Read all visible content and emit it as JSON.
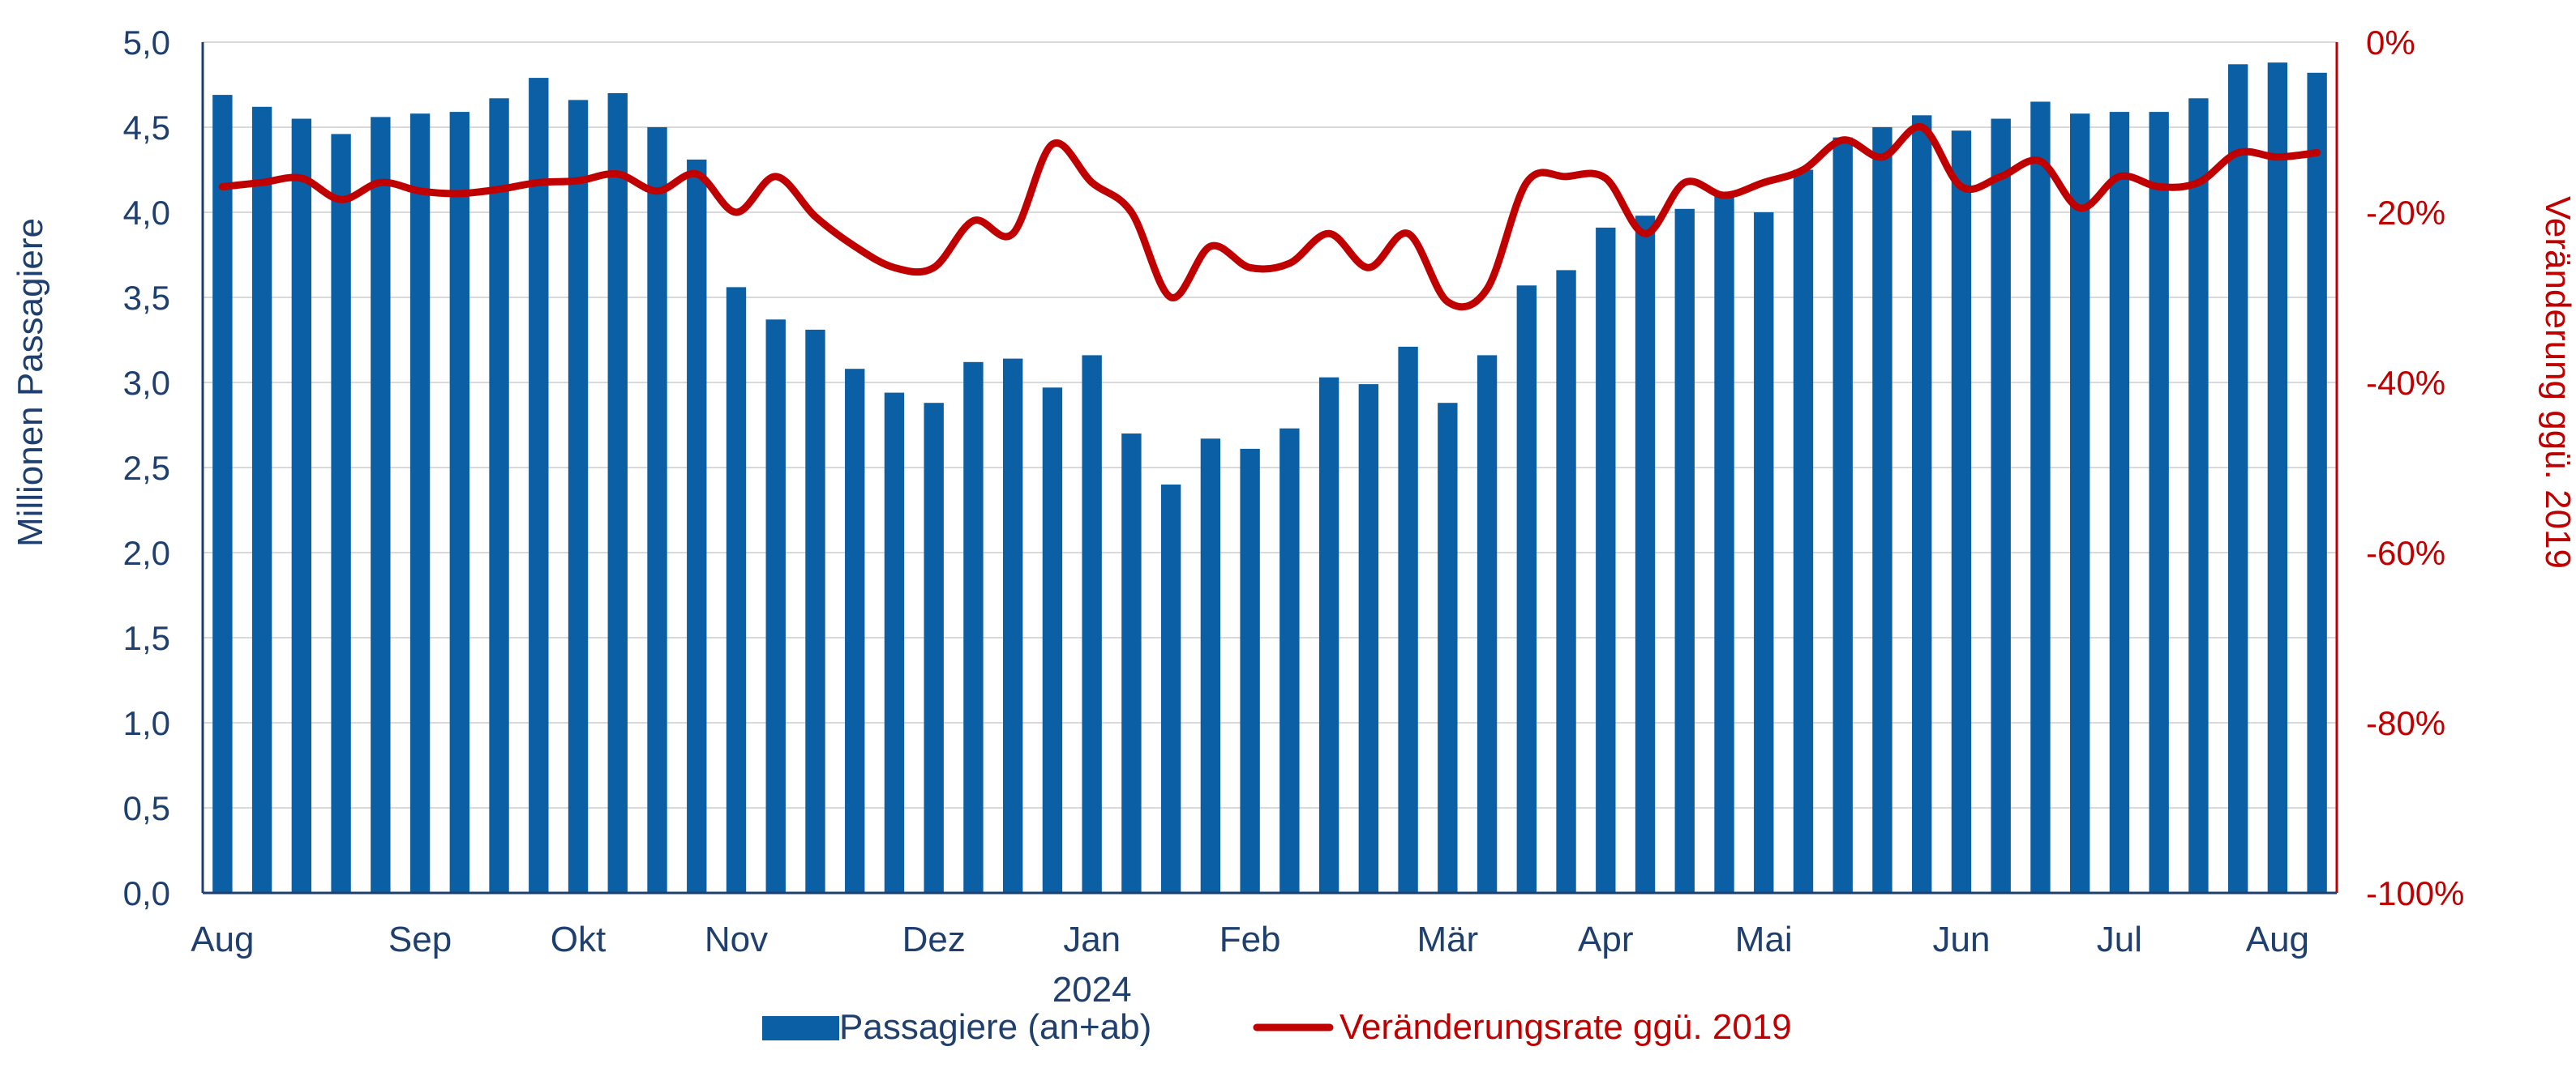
{
  "chart_data": {
    "type": "bar+line",
    "y_left_label": "Millionen Passagiere",
    "y_right_label": "Veränderung ggü. 2019",
    "y_left_ticks": [
      "0,0",
      "0,5",
      "1,0",
      "1,5",
      "2,0",
      "2,5",
      "3,0",
      "3,5",
      "4,0",
      "4,5",
      "5,0"
    ],
    "y_right_ticks": [
      "-100%",
      "-80%",
      "-60%",
      "-40%",
      "-20%",
      "0%"
    ],
    "ylim_left": [
      0,
      5
    ],
    "ylim_right": [
      -100,
      0
    ],
    "grid": "horizontal",
    "legend_position": "bottom",
    "x_month_labels": [
      {
        "label": "Aug",
        "week": 0
      },
      {
        "label": "Sep",
        "week": 5
      },
      {
        "label": "Okt",
        "week": 9
      },
      {
        "label": "Nov",
        "week": 13
      },
      {
        "label": "Dez",
        "week": 18
      },
      {
        "label": "Jan",
        "week": 22
      },
      {
        "label": "Feb",
        "week": 26
      },
      {
        "label": "Mär",
        "week": 31
      },
      {
        "label": "Apr",
        "week": 35
      },
      {
        "label": "Mai",
        "week": 39
      },
      {
        "label": "Jun",
        "week": 44
      },
      {
        "label": "Jul",
        "week": 48
      },
      {
        "label": "Aug",
        "week": 52
      }
    ],
    "year_label": {
      "label": "2024",
      "week": 22
    },
    "series": [
      {
        "name": "Passagiere (an+ab)",
        "type": "bar",
        "axis": "left",
        "color": "#0b5fa5",
        "values": [
          4.69,
          4.62,
          4.55,
          4.46,
          4.56,
          4.58,
          4.59,
          4.67,
          4.79,
          4.66,
          4.7,
          4.5,
          4.31,
          3.56,
          3.37,
          3.31,
          3.08,
          2.94,
          2.88,
          3.12,
          3.14,
          2.97,
          3.16,
          2.7,
          2.4,
          2.67,
          2.61,
          2.73,
          3.03,
          2.99,
          3.21,
          2.88,
          3.16,
          3.57,
          3.66,
          3.91,
          3.98,
          4.02,
          4.12,
          4.0,
          4.25,
          4.44,
          4.5,
          4.57,
          4.48,
          4.55,
          4.65,
          4.58,
          4.59,
          4.59,
          4.67,
          4.87,
          4.88,
          4.82
        ]
      },
      {
        "name": "Veränderungsrate ggü. 2019",
        "type": "line",
        "axis": "right",
        "color": "#c00000",
        "values": [
          -17,
          -16.5,
          -16,
          -18.5,
          -16.5,
          -17.5,
          -17.8,
          -17.3,
          -16.5,
          -16.3,
          -15.5,
          -17.5,
          -15.5,
          -20,
          -15.8,
          -20.5,
          -24,
          -26.5,
          -26.5,
          -21,
          -22.5,
          -12,
          -16.5,
          -20,
          -30,
          -24,
          -26.5,
          -26,
          -22.5,
          -26.5,
          -22.5,
          -30.5,
          -29,
          -16.5,
          -15.8,
          -16,
          -22.5,
          -16.5,
          -18,
          -16.5,
          -15,
          -11.5,
          -13.5,
          -10,
          -17,
          -15.8,
          -14,
          -19.5,
          -15.8,
          -17,
          -16.5,
          -13,
          -13.5,
          -13
        ]
      }
    ]
  }
}
